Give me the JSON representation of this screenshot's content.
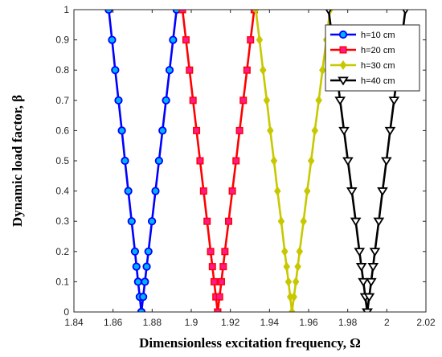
{
  "chart_data": {
    "type": "line",
    "xlabel": "Dimensionless excitation frequency, Ω",
    "ylabel": "Dynamic load factor, β",
    "xlim": [
      1.84,
      2.02
    ],
    "ylim": [
      0,
      1
    ],
    "x_ticks": [
      "1.84",
      "1.86",
      "1.88",
      "1.9",
      "1.92",
      "1.94",
      "1.96",
      "1.98",
      "2",
      "2.02"
    ],
    "y_ticks": [
      "0",
      "0.1",
      "0.2",
      "0.3",
      "0.4",
      "0.5",
      "0.6",
      "0.7",
      "0.8",
      "0.9",
      "1"
    ],
    "grid": false,
    "legend_position": "top-right",
    "series": [
      {
        "name": "h=10 cm",
        "color": "#0000ff",
        "marker": "circle",
        "marker_face": "#00b4ff",
        "center": 1.8745,
        "left": [
          1.8745,
          1.8728,
          1.8712,
          1.8695,
          1.8678,
          1.8661,
          1.8645,
          1.8628,
          1.8611,
          1.8595,
          1.8578
        ],
        "right": [
          1.8745,
          1.8763,
          1.8781,
          1.8799,
          1.8817,
          1.8835,
          1.8853,
          1.8871,
          1.8889,
          1.8907,
          1.8925
        ]
      },
      {
        "name": "h=20 cm",
        "color": "#ff0000",
        "marker": "square",
        "marker_face": "#ff1a8c",
        "center": 1.9135,
        "left": [
          1.9135,
          1.9117,
          1.9099,
          1.9081,
          1.9063,
          1.9045,
          1.9027,
          1.9009,
          1.8991,
          1.8973,
          1.8955
        ],
        "right": [
          1.9135,
          1.9154,
          1.9172,
          1.9191,
          1.921,
          1.9229,
          1.9247,
          1.9266,
          1.9285,
          1.9303,
          1.9322
        ]
      },
      {
        "name": "h=30 cm",
        "color": "#c8c800",
        "marker": "diamond",
        "marker_face": "#c8c800",
        "center": 1.9515,
        "left": [
          1.9515,
          1.9497,
          1.9478,
          1.946,
          1.9441,
          1.9423,
          1.9404,
          1.9386,
          1.9367,
          1.9349,
          1.933
        ],
        "right": [
          1.9515,
          1.9535,
          1.9554,
          1.9574,
          1.9593,
          1.9613,
          1.9632,
          1.9652,
          1.9671,
          1.9691,
          1.971
        ]
      },
      {
        "name": "h=40 cm",
        "color": "#000000",
        "marker": "triangle-down",
        "marker_face": "#ffffff",
        "center": 1.99,
        "left": [
          1.99,
          1.988,
          1.986,
          1.9841,
          1.9821,
          1.9801,
          1.9781,
          1.9761,
          1.9742,
          1.9722,
          1.9702
        ],
        "right": [
          1.99,
          1.992,
          1.9939,
          1.9959,
          1.9978,
          1.9998,
          2.0017,
          2.0037,
          2.0056,
          2.0076,
          2.0095
        ]
      }
    ]
  }
}
